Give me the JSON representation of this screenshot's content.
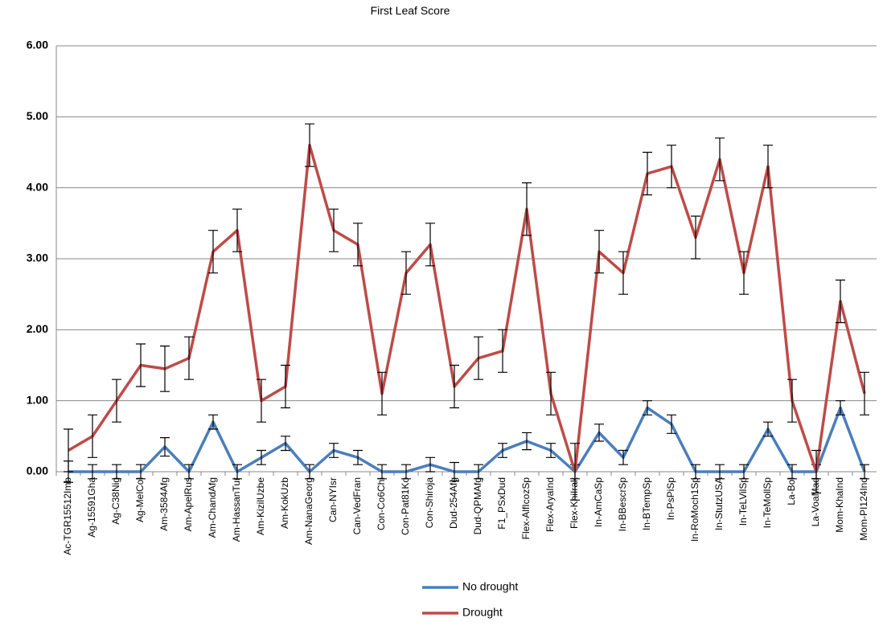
{
  "chart_data": {
    "type": "line",
    "title": "First Leaf Score",
    "categories": [
      "Ac-TGR15512Imb",
      "Ag-15591Gha",
      "Ag-C38Nig",
      "Ag-MelCol",
      "Am-3584Afg",
      "Am-ApelRus",
      "Am-ChandAfg",
      "Am-HassanTur",
      "Am-KizilUzbe",
      "Am-KokUzb",
      "Am-NanaGeorg",
      "Can-NYIsr",
      "Can-VedFran",
      "Con-Co6Chi",
      "Con-Pat81Ko",
      "Con-Shiroja",
      "Dud-254Afg",
      "Dud-QPMAfg",
      "F1_PSxDud",
      "Flex-AlfIcozSp",
      "Flex-AryaInd",
      "Flex-KhiIrak",
      "In-AmCaSp",
      "In-BBescrSp",
      "In-BTempSp",
      "In-PsPiSp",
      "In-RoMoch1Sp",
      "In-StutzUSA",
      "In-TeLVilSp",
      "In-TeMollSp",
      "La-Bol",
      "La-VoaMad",
      "Mom-KhaInd",
      "Mom-PI124Ind"
    ],
    "series": [
      {
        "name": "No drought",
        "color": "#4a7ebb",
        "values": [
          0,
          0,
          0,
          0,
          0.35,
          0,
          0.7,
          0,
          0.2,
          0.4,
          0,
          0.3,
          0.2,
          0,
          0,
          0.1,
          0,
          0,
          0.3,
          0.43,
          0.3,
          0,
          0.55,
          0.2,
          0.9,
          0.67,
          0,
          0,
          0,
          0.6,
          0,
          0,
          0.9,
          0
        ],
        "errors": [
          0.15,
          0.1,
          0.1,
          0.1,
          0.13,
          0.1,
          0.1,
          0.1,
          0.1,
          0.1,
          0.1,
          0.1,
          0.1,
          0.1,
          0.1,
          0.1,
          0.13,
          0.1,
          0.1,
          0.12,
          0.1,
          0.1,
          0.12,
          0.1,
          0.1,
          0.13,
          0.1,
          0.1,
          0.1,
          0.1,
          0.1,
          0.1,
          0.1,
          0.1
        ]
      },
      {
        "name": "Drought",
        "color": "#be4b48",
        "values": [
          0.3,
          0.5,
          1.0,
          1.5,
          1.45,
          1.6,
          3.1,
          3.4,
          1.0,
          1.2,
          4.6,
          3.4,
          3.2,
          1.1,
          2.8,
          3.2,
          1.2,
          1.6,
          1.7,
          3.7,
          1.1,
          0,
          3.1,
          2.8,
          4.2,
          4.3,
          3.3,
          4.4,
          2.8,
          4.3,
          1.0,
          0,
          2.4,
          1.1
        ],
        "errors": [
          0.3,
          0.3,
          0.3,
          0.3,
          0.32,
          0.3,
          0.3,
          0.3,
          0.3,
          0.3,
          0.3,
          0.3,
          0.3,
          0.3,
          0.3,
          0.3,
          0.3,
          0.3,
          0.3,
          0.37,
          0.3,
          0.4,
          0.3,
          0.3,
          0.3,
          0.3,
          0.3,
          0.3,
          0.3,
          0.3,
          0.3,
          0.3,
          0.3,
          0.3
        ]
      }
    ],
    "ylim": [
      0,
      6
    ],
    "yticks": [
      {
        "value": 0,
        "label": "0.00"
      },
      {
        "value": 1,
        "label": "1.00"
      },
      {
        "value": 2,
        "label": "2.00"
      },
      {
        "value": 3,
        "label": "3.00"
      },
      {
        "value": 4,
        "label": "4.00"
      },
      {
        "value": 5,
        "label": "5.00"
      },
      {
        "value": 6,
        "label": "6.00"
      }
    ],
    "grid": true,
    "legend": "bottom"
  }
}
